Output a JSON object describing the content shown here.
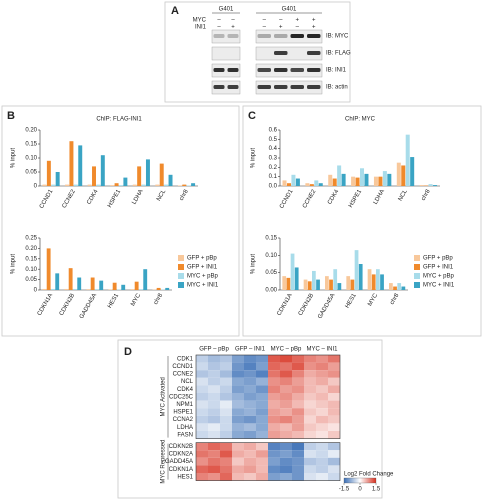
{
  "panel_labels": [
    "A",
    "B",
    "C",
    "D"
  ],
  "blot": {
    "row_labels": [
      "MYC",
      "INI1"
    ],
    "groups": [
      {
        "cell_line": "G401",
        "signs": [
          [
            "–",
            "–"
          ],
          [
            "–",
            "+"
          ]
        ]
      },
      {
        "cell_line": "G401",
        "signs": [
          [
            "–",
            "–",
            "+",
            "+"
          ],
          [
            "–",
            "+",
            "–",
            "+"
          ]
        ]
      }
    ],
    "antibodies": [
      "IB: MYC",
      "IB: FLAG",
      "IB: INI1",
      "IB: actin"
    ]
  },
  "chart_data": [
    {
      "type": "bar",
      "title": "ChIP: FLAG-INI1",
      "y_label": "% input",
      "categories": [
        "CCND1",
        "CCNE2",
        "CDK4",
        "HSPE1",
        "LDHA",
        "NCL",
        "chr8"
      ],
      "series": [
        {
          "name": "GFP + pBp",
          "color": "#f8c89b",
          "values": [
            0.005,
            0.005,
            0.005,
            0.003,
            0.005,
            0.005,
            0.002
          ]
        },
        {
          "name": "GFP + INI1",
          "color": "#f08a2c",
          "values": [
            0.09,
            0.16,
            0.07,
            0.01,
            0.07,
            0.08,
            0.005
          ]
        },
        {
          "name": "MYC + pBp",
          "color": "#a8dcea",
          "values": [
            0.005,
            0.005,
            0.005,
            0.003,
            0.005,
            0.005,
            0.002
          ]
        },
        {
          "name": "MYC + INI1",
          "color": "#3aa4c4",
          "values": [
            0.05,
            0.145,
            0.11,
            0.03,
            0.095,
            0.04,
            0.01
          ]
        }
      ],
      "ylim": [
        0,
        0.2
      ],
      "yticks": [
        0,
        0.05,
        {
          "value": 0.1,
          "label": "0.10"
        },
        0.15,
        {
          "value": 0.2,
          "label": "0.20"
        }
      ]
    },
    {
      "type": "bar",
      "y_label": "% input",
      "categories": [
        "CDKN1A",
        "CDKN2B",
        "GADD45A",
        "HES1",
        "MYC",
        "chr8"
      ],
      "series": [
        {
          "name": "GFP + pBp",
          "color": "#f8c89b",
          "values": [
            0.005,
            0.005,
            0.004,
            0.003,
            0.004,
            0.002
          ]
        },
        {
          "name": "GFP + INI1",
          "color": "#f08a2c",
          "values": [
            0.2,
            0.105,
            0.06,
            0.035,
            0.04,
            0.01
          ]
        },
        {
          "name": "MYC + pBp",
          "color": "#a8dcea",
          "values": [
            0.005,
            0.005,
            0.004,
            0.003,
            0.004,
            0.002
          ]
        },
        {
          "name": "MYC + INI1",
          "color": "#3aa4c4",
          "values": [
            0.08,
            0.06,
            0.045,
            0.025,
            0.1,
            0.01
          ]
        }
      ],
      "ylim": [
        0,
        0.25
      ],
      "yticks": [
        0,
        0.05,
        {
          "value": 0.1,
          "label": "0.10"
        },
        0.15,
        {
          "value": 0.2,
          "label": "0.20"
        },
        0.25
      ],
      "legend": "right"
    },
    {
      "type": "bar",
      "title": "ChIP: MYC",
      "y_label": "% input",
      "categories": [
        "CCND1",
        "CCNE2",
        "CDK4",
        "HSPE1",
        "LDHA",
        "NCL",
        "chr8"
      ],
      "series": [
        {
          "name": "GFP + pBp",
          "color": "#f8c89b",
          "values": [
            0.06,
            0.03,
            0.12,
            0.1,
            0.1,
            0.25,
            0.01
          ]
        },
        {
          "name": "GFP + INI1",
          "color": "#f08a2c",
          "values": [
            0.03,
            0.02,
            0.08,
            0.09,
            0.1,
            0.22,
            0.005
          ]
        },
        {
          "name": "MYC + pBp",
          "color": "#a8dcea",
          "values": [
            0.12,
            0.06,
            0.22,
            0.19,
            0.16,
            0.55,
            0.02
          ]
        },
        {
          "name": "MYC + INI1",
          "color": "#3aa4c4",
          "values": [
            0.08,
            0.03,
            0.13,
            0.13,
            0.13,
            0.31,
            0.01
          ]
        }
      ],
      "ylim": [
        0,
        0.6
      ],
      "yticks": [
        {
          "value": 0,
          "label": "0.0"
        },
        0.1,
        0.2,
        0.3,
        0.4,
        0.5,
        0.6
      ]
    },
    {
      "type": "bar",
      "y_label": "% input",
      "categories": [
        "CDKN1A",
        "CDKN2B",
        "GADD45A",
        "HES1",
        "MYC",
        "chr8"
      ],
      "series": [
        {
          "name": "GFP + pBp",
          "color": "#f8c89b",
          "values": [
            0.04,
            0.03,
            0.04,
            0.04,
            0.06,
            0.02
          ]
        },
        {
          "name": "GFP + INI1",
          "color": "#f08a2c",
          "values": [
            0.035,
            0.025,
            0.03,
            0.03,
            0.045,
            0.01
          ]
        },
        {
          "name": "MYC + pBp",
          "color": "#a8dcea",
          "values": [
            0.105,
            0.055,
            0.06,
            0.115,
            0.06,
            0.02
          ]
        },
        {
          "name": "MYC + INI1",
          "color": "#3aa4c4",
          "values": [
            0.065,
            0.03,
            0.02,
            0.075,
            0.045,
            0.01
          ]
        }
      ],
      "ylim": [
        0,
        0.15
      ],
      "yticks": [
        {
          "value": 0,
          "label": "0.00"
        },
        0.05,
        {
          "value": 0.1,
          "label": "0.10"
        },
        0.15
      ],
      "legend": "right"
    },
    {
      "type": "heatmap",
      "column_groups": [
        "GFP – pBp",
        "GFP – INI1",
        "MYC – pBp",
        "MYC – INI1"
      ],
      "row_groups": [
        {
          "label": "MYC Activated",
          "rows": [
            "CDK1",
            "CCND1",
            "CCNE2",
            "NCL",
            "CDK4",
            "CDC25C",
            "NPM1",
            "HSPE1",
            "CCNA2",
            "LDHA",
            "FASN"
          ],
          "values": [
            [
              [
                -0.5,
                -0.7,
                -0.6
              ],
              [
                -1.0,
                -1.2,
                -1.1
              ],
              [
                1.2,
                1.3,
                1.1
              ],
              [
                0.9,
                0.8,
                1.0
              ]
            ],
            [
              [
                -0.4,
                -0.6,
                -0.5
              ],
              [
                -1.1,
                -1.3,
                -1.0
              ],
              [
                1.1,
                1.0,
                1.2
              ],
              [
                0.8,
                0.9,
                0.7
              ]
            ],
            [
              [
                -0.6,
                -0.5,
                -0.7
              ],
              [
                -1.2,
                -1.1,
                -1.3
              ],
              [
                1.0,
                1.2,
                0.9
              ],
              [
                0.6,
                0.7,
                0.8
              ]
            ],
            [
              [
                -0.3,
                -0.5,
                -0.4
              ],
              [
                -0.9,
                -1.0,
                -0.8
              ],
              [
                0.8,
                0.9,
                0.7
              ],
              [
                0.5,
                0.6,
                0.4
              ]
            ],
            [
              [
                -0.4,
                -0.3,
                -0.5
              ],
              [
                -1.0,
                -0.9,
                -1.1
              ],
              [
                0.9,
                0.7,
                0.8
              ],
              [
                0.5,
                0.4,
                0.6
              ]
            ],
            [
              [
                -0.5,
                -0.4,
                -0.6
              ],
              [
                -0.8,
                -1.0,
                -0.9
              ],
              [
                0.7,
                0.8,
                0.6
              ],
              [
                0.4,
                0.5,
                0.3
              ]
            ],
            [
              [
                -0.3,
                -0.4,
                -0.2
              ],
              [
                -0.7,
                -0.8,
                -0.9
              ],
              [
                0.6,
                0.7,
                0.5
              ],
              [
                0.3,
                0.4,
                0.5
              ]
            ],
            [
              [
                -0.4,
                -0.5,
                -0.3
              ],
              [
                -0.9,
                -0.8,
                -1.0
              ],
              [
                0.7,
                0.6,
                0.8
              ],
              [
                0.4,
                0.3,
                0.5
              ]
            ],
            [
              [
                -0.5,
                -0.6,
                -0.4
              ],
              [
                -1.0,
                -1.1,
                -0.9
              ],
              [
                0.8,
                0.9,
                0.7
              ],
              [
                0.3,
                0.5,
                0.4
              ]
            ],
            [
              [
                -0.3,
                -0.2,
                -0.4
              ],
              [
                -0.8,
                -0.7,
                -0.9
              ],
              [
                0.6,
                0.5,
                0.7
              ],
              [
                0.4,
                0.3,
                0.2
              ]
            ],
            [
              [
                -0.4,
                -0.3,
                -0.5
              ],
              [
                -0.9,
                -1.0,
                -0.8
              ],
              [
                0.7,
                0.6,
                0.5
              ],
              [
                0.3,
                0.2,
                0.4
              ]
            ]
          ]
        },
        {
          "label": "MYC Repressed",
          "rows": [
            "CDKN2B",
            "CDKN2A",
            "GADD45A",
            "CDKN1A",
            "HES1"
          ],
          "values": [
            [
              [
                0.9,
                1.1,
                1.0
              ],
              [
                0.5,
                0.6,
                0.4
              ],
              [
                -1.3,
                -1.2,
                -1.4
              ],
              [
                -0.5,
                -0.4,
                -0.6
              ]
            ],
            [
              [
                1.0,
                0.9,
                1.2
              ],
              [
                0.6,
                0.5,
                0.7
              ],
              [
                -1.1,
                -1.0,
                -1.2
              ],
              [
                -0.3,
                -0.4,
                -0.2
              ]
            ],
            [
              [
                0.8,
                1.0,
                0.9
              ],
              [
                0.4,
                0.6,
                0.5
              ],
              [
                -1.0,
                -1.2,
                -1.1
              ],
              [
                -0.6,
                -0.5,
                -0.7
              ]
            ],
            [
              [
                1.1,
                1.2,
                1.0
              ],
              [
                0.6,
                0.7,
                0.5
              ],
              [
                -1.2,
                -1.3,
                -1.1
              ],
              [
                -0.4,
                -0.5,
                -0.3
              ]
            ],
            [
              [
                0.9,
                0.8,
                1.1
              ],
              [
                0.5,
                0.4,
                0.6
              ],
              [
                -1.0,
                -0.9,
                -1.1
              ],
              [
                -0.3,
                -0.2,
                -0.4
              ]
            ]
          ]
        }
      ],
      "colorbar_label": "Log2 Fold Change",
      "clim": [
        -1.5,
        1.5
      ],
      "cticks": [
        -1.5,
        0,
        1.5
      ],
      "colors": [
        "#3b6fb6",
        "#ffffff",
        "#d7301f"
      ]
    }
  ]
}
